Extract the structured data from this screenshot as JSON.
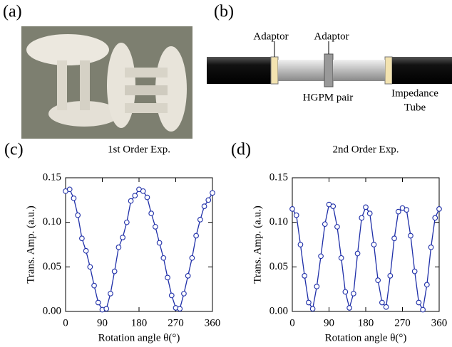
{
  "panels": {
    "a": "(a)",
    "b": "(b)"
  },
  "diagram": {
    "adaptor_left": "Adaptor",
    "adaptor_right": "Adaptor",
    "hgpm": "HGPM pair",
    "tube_line1": "Impedance",
    "tube_line2": "Tube"
  },
  "chart_data": [
    {
      "type": "line",
      "panel_label": "(c)",
      "title": "1st Order Exp.",
      "x_label": "Rotation angle θ(°)",
      "y_label": "Trans. Amp. (a.u.)",
      "x": [
        0,
        10,
        20,
        30,
        40,
        50,
        60,
        70,
        80,
        90,
        100,
        110,
        120,
        130,
        140,
        150,
        160,
        170,
        180,
        190,
        200,
        210,
        220,
        230,
        240,
        250,
        260,
        270,
        280,
        290,
        300,
        310,
        320,
        330,
        340,
        350,
        360
      ],
      "series": [
        {
          "name": "1st Order Exp.",
          "color": "#1f2fa8",
          "values": [
            0.135,
            0.137,
            0.127,
            0.108,
            0.082,
            0.068,
            0.05,
            0.029,
            0.01,
            0.002,
            0.003,
            0.02,
            0.045,
            0.072,
            0.083,
            0.1,
            0.124,
            0.13,
            0.137,
            0.135,
            0.128,
            0.11,
            0.095,
            0.077,
            0.06,
            0.038,
            0.018,
            0.004,
            0.003,
            0.02,
            0.04,
            0.06,
            0.085,
            0.103,
            0.118,
            0.125,
            0.133
          ]
        }
      ],
      "xlim": [
        0,
        360
      ],
      "xticks": [
        0,
        90,
        180,
        270,
        360
      ],
      "ylim": [
        0,
        0.15
      ],
      "yticks": [
        {
          "value": 0,
          "label": "0.00"
        },
        0.05,
        {
          "value": 0.1,
          "label": "0.10"
        },
        0.15
      ]
    },
    {
      "type": "line",
      "panel_label": "(d)",
      "title": "2nd Order Exp.",
      "x_label": "Rotation angle θ(°)",
      "y_label": "Trans. Amp. (a.u.)",
      "x": [
        0,
        10,
        20,
        30,
        40,
        50,
        60,
        70,
        80,
        90,
        100,
        110,
        120,
        130,
        140,
        150,
        160,
        170,
        180,
        190,
        200,
        210,
        220,
        230,
        240,
        250,
        260,
        270,
        280,
        290,
        300,
        310,
        320,
        330,
        340,
        350,
        360
      ],
      "series": [
        {
          "name": "2nd Order Exp.",
          "color": "#1f2fa8",
          "values": [
            0.115,
            0.108,
            0.075,
            0.04,
            0.01,
            0.003,
            0.028,
            0.062,
            0.098,
            0.12,
            0.118,
            0.095,
            0.06,
            0.022,
            0.004,
            0.02,
            0.065,
            0.105,
            0.117,
            0.11,
            0.075,
            0.035,
            0.01,
            0.005,
            0.04,
            0.082,
            0.112,
            0.116,
            0.114,
            0.085,
            0.045,
            0.01,
            0.002,
            0.03,
            0.072,
            0.105,
            0.115
          ]
        }
      ],
      "xlim": [
        0,
        360
      ],
      "xticks": [
        0,
        90,
        180,
        270,
        360
      ],
      "ylim": [
        0,
        0.15
      ],
      "yticks": [
        {
          "value": 0,
          "label": "0.00"
        },
        0.05,
        {
          "value": 0.1,
          "label": "0.10"
        },
        0.15
      ]
    }
  ]
}
